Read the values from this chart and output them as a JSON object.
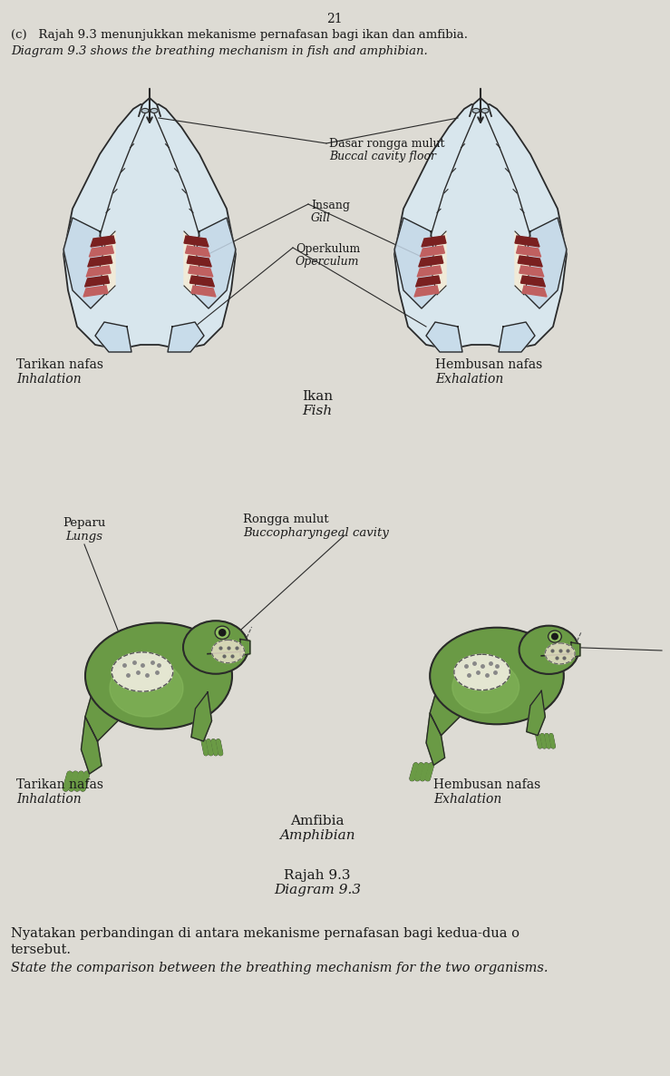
{
  "page_number": "21",
  "bg_color": "#dddbd4",
  "title_line1": "(c)   Rajah 9.3 menunjukkan mekanisme pernafasan bagi ikan dan amfibia.",
  "title_line2": "Diagram 9.3 shows the breathing mechanism in fish and amphibian.",
  "fish_labels": {
    "buccal_cavity_ms": "Dasar rongga mulut",
    "buccal_cavity_en": "Buccal cavity floor",
    "gill_ms": "Insang",
    "gill_en": "Gill",
    "operculum_ms": "Operkulum",
    "operculum_en": "Operculum",
    "left_ms": "Tarikan nafas",
    "left_en": "Inhalation",
    "right_ms": "Hembusan nafas",
    "right_en": "Exhalation",
    "center_ms": "Ikan",
    "center_en": "Fish"
  },
  "amphibian_labels": {
    "lungs_ms": "Peparu",
    "lungs_en": "Lungs",
    "cavity_ms": "Rongga mulut",
    "cavity_en": "Buccopharyngeal cavity",
    "left_ms": "Tarikan nafas",
    "left_en": "Inhalation",
    "right_ms": "Hembusan nafas",
    "right_en": "Exhalation",
    "center_ms": "Amfibia",
    "center_en": "Amphibian"
  },
  "diagram_label_ms": "Rajah 9.3",
  "diagram_label_en": "Diagram 9.3",
  "question_ms": "Nyatakan perbandingan di antara mekanisme pernafasan bagi kedua-dua o",
  "question_ms2": "tersebut.",
  "question_en": "State the comparison between the breathing mechanism for the two organisms.",
  "text_color": "#1a1a1a",
  "line_color": "#2a2a2a"
}
